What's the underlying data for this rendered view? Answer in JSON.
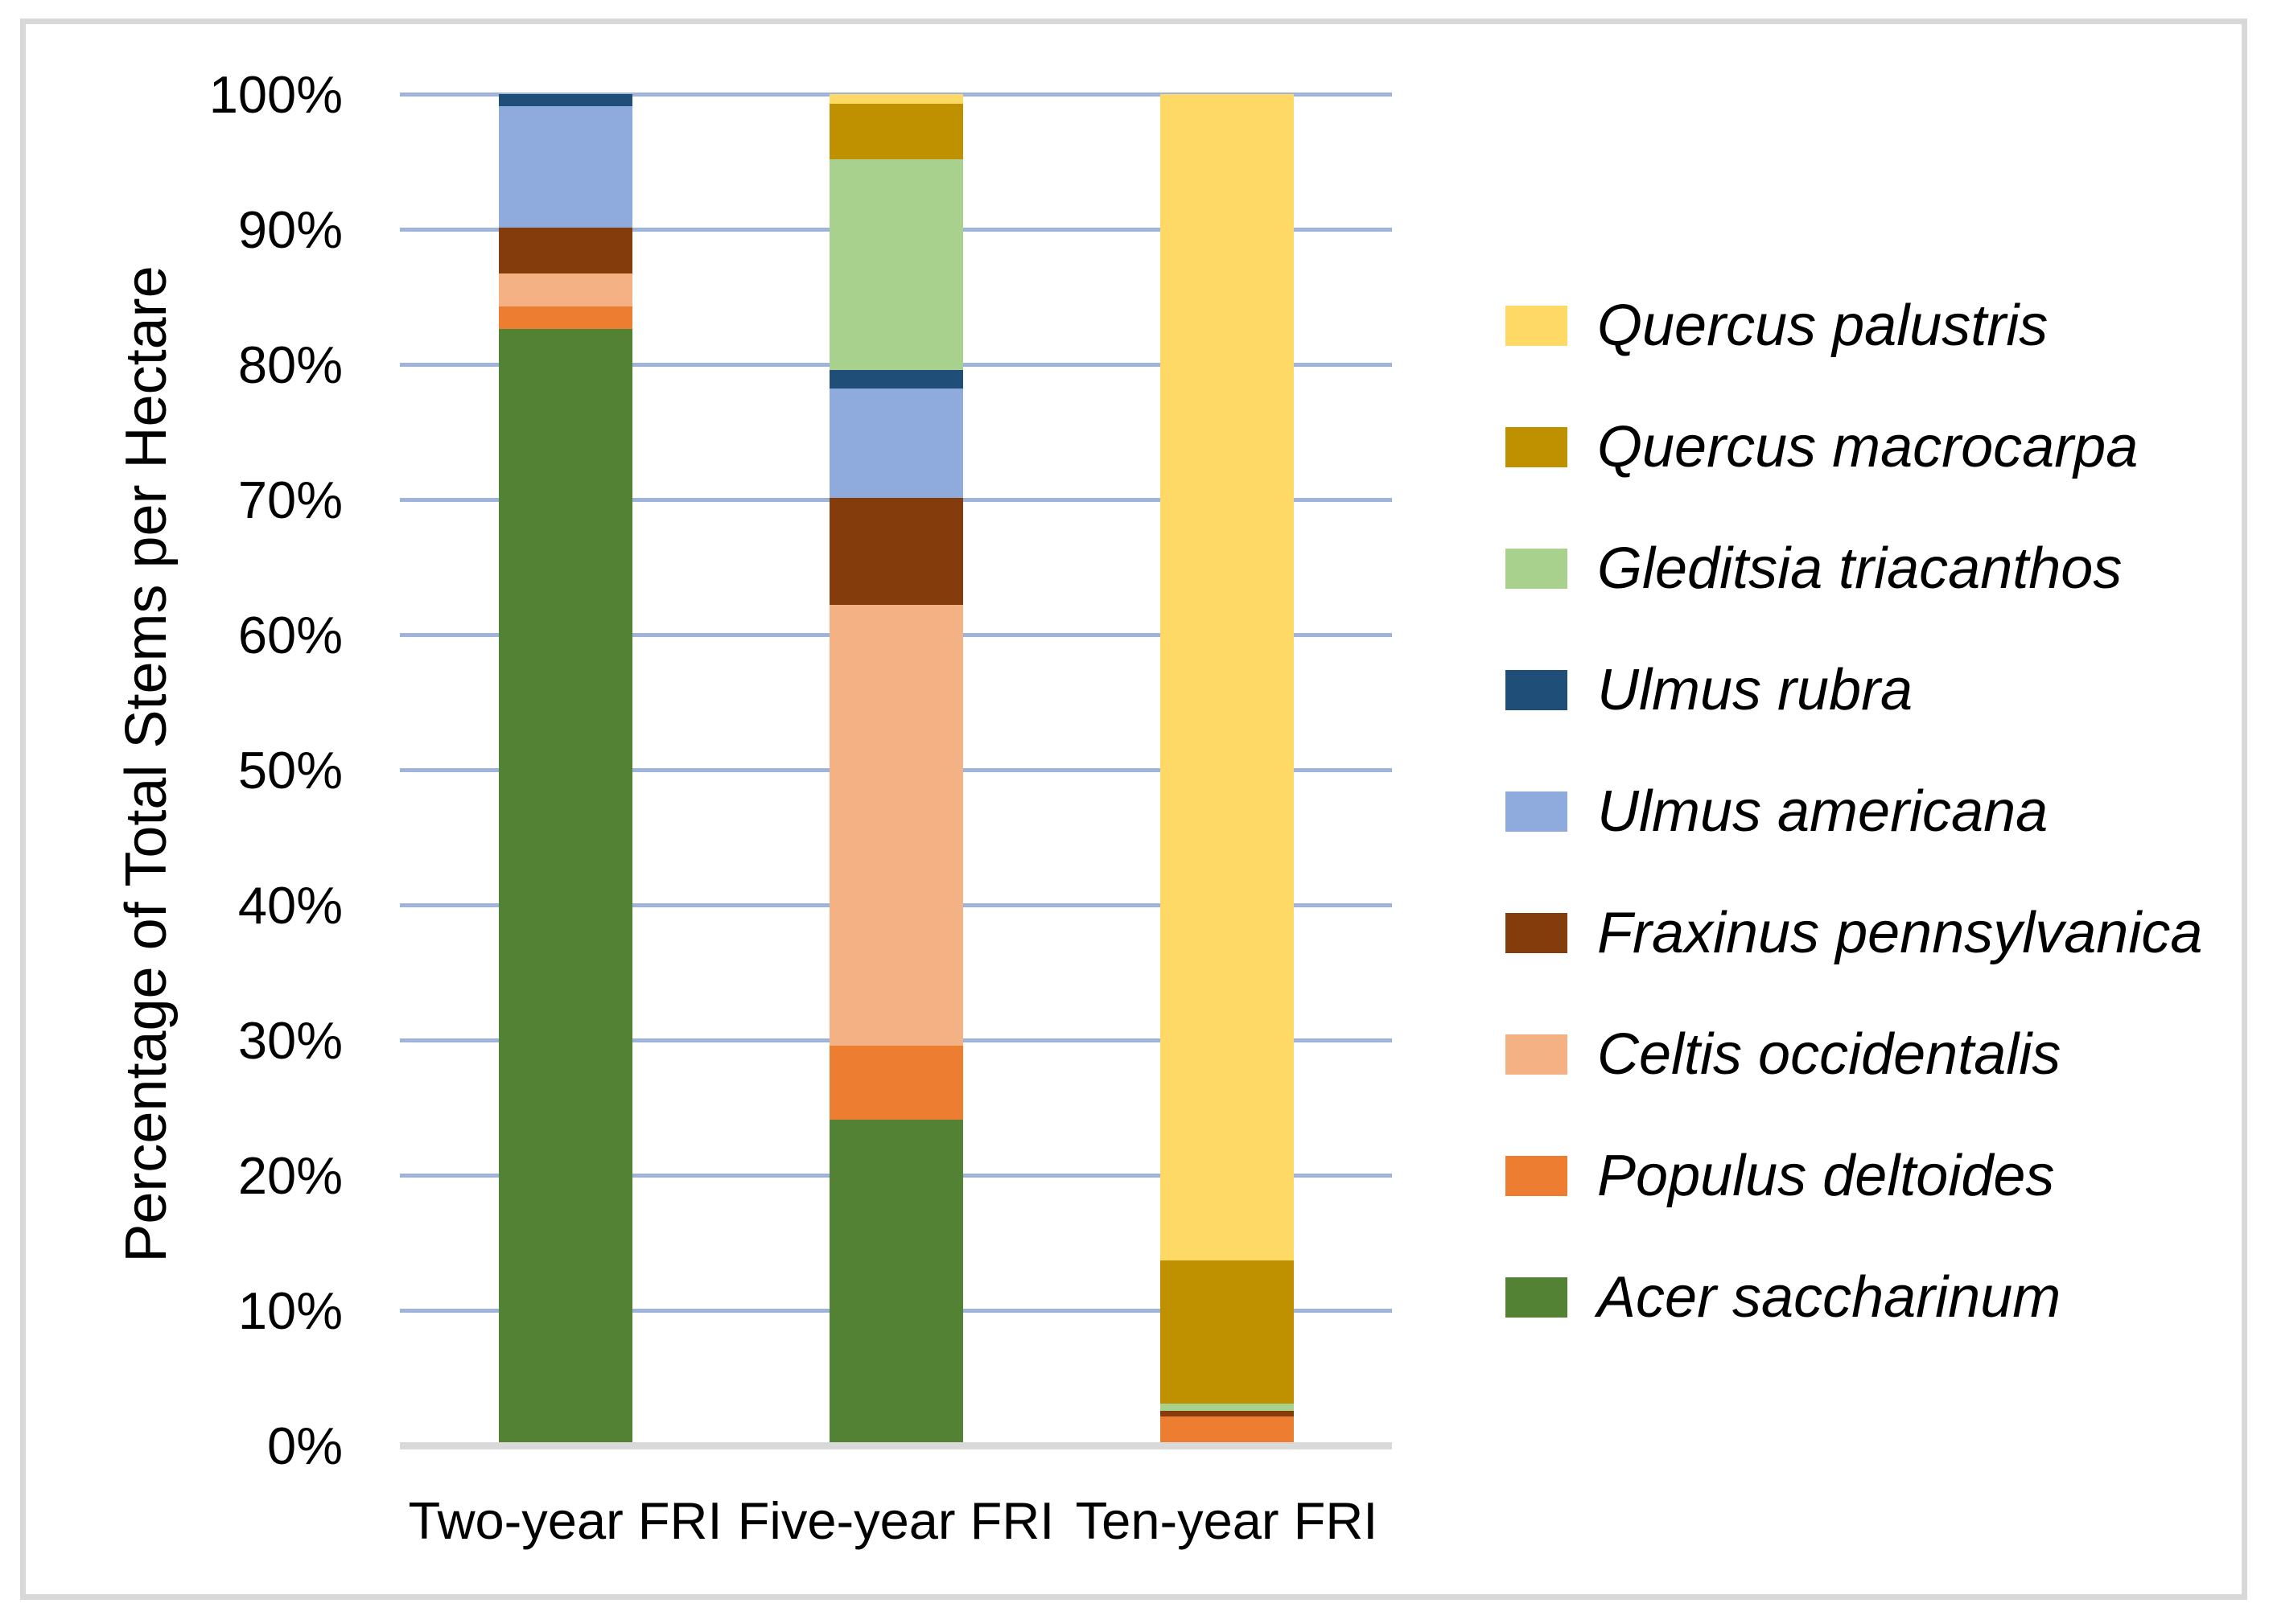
{
  "chart_data": {
    "type": "bar",
    "subtype": "stacked-100-percent-column",
    "title": "",
    "xlabel": "",
    "ylabel": "Percentage of Total Stems per Hectare",
    "categories": [
      "Two-year FRI",
      "Five-year FRI",
      "Ten-year FRI"
    ],
    "y_ticks": [
      "100%",
      "90%",
      "80%",
      "70%",
      "60%",
      "50%",
      "40%",
      "30%",
      "20%",
      "10%",
      "0%"
    ],
    "ylim": [
      0,
      100
    ],
    "grid": "horizontal",
    "legend_position": "right",
    "series_bottom_to_top": [
      {
        "name": "Acer saccharinum",
        "color": "#548235",
        "values": [
          82.6,
          24.1,
          0
        ]
      },
      {
        "name": "Populus deltoides",
        "color": "#ED7D31",
        "values": [
          1.7,
          5.5,
          2.15
        ]
      },
      {
        "name": "Celtis occidentalis",
        "color": "#F4B183",
        "values": [
          2.4,
          32.6,
          0
        ]
      },
      {
        "name": "Fraxinus pennsylvanica",
        "color": "#843C0C",
        "values": [
          3.4,
          7.9,
          0.4
        ]
      },
      {
        "name": "Ulmus americana",
        "color": "#8FAADC",
        "values": [
          9.0,
          8.1,
          0
        ]
      },
      {
        "name": "Ulmus rubra",
        "color": "#1F4E79",
        "values": [
          0.9,
          1.4,
          0
        ]
      },
      {
        "name": "Gleditsia triacanthos",
        "color": "#A9D18E",
        "values": [
          0,
          15.6,
          0.55
        ]
      },
      {
        "name": "Quercus macrocarpa",
        "color": "#BF9000",
        "values": [
          0,
          4.1,
          10.6
        ]
      },
      {
        "name": "Quercus palustris",
        "color": "#FFD966",
        "values": [
          0,
          0.7,
          86.3
        ]
      }
    ],
    "legend_top_to_bottom": [
      {
        "label": "Quercus palustris",
        "color": "#FFD966"
      },
      {
        "label": "Quercus macrocarpa",
        "color": "#BF9000"
      },
      {
        "label": "Gleditsia triacanthos",
        "color": "#A9D18E"
      },
      {
        "label": "Ulmus rubra",
        "color": "#1F4E79"
      },
      {
        "label": "Ulmus americana",
        "color": "#8FAADC"
      },
      {
        "label": "Fraxinus pennsylvanica",
        "color": "#843C0C"
      },
      {
        "label": "Celtis occidentalis",
        "color": "#F4B183"
      },
      {
        "label": "Populus deltoides",
        "color": "#ED7D31"
      },
      {
        "label": "Acer saccharinum",
        "color": "#548235"
      }
    ]
  },
  "colors": {
    "gridline": "#9EB4DB",
    "axis_baseline": "#D9D9D9",
    "chart_border": "#D8D8D8",
    "text": "#000000",
    "background": "#FFFFFF"
  }
}
